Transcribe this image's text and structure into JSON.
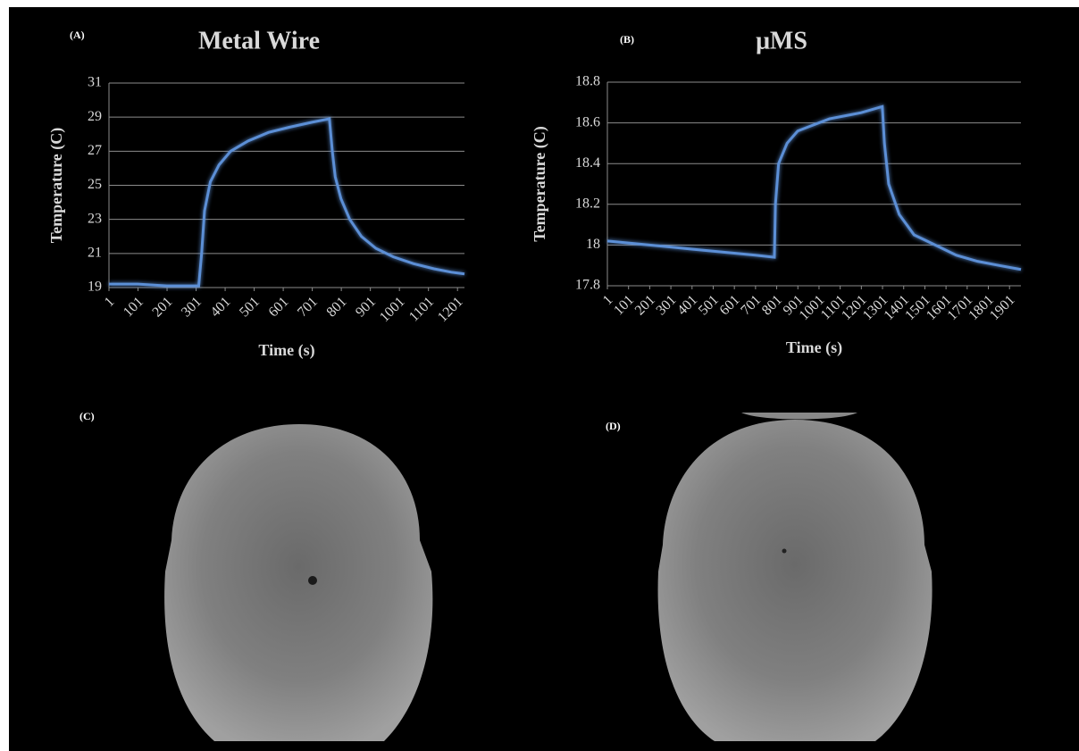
{
  "chart_data": [
    {
      "type": "line",
      "panel_label": "(A)",
      "title": "Metal Wire",
      "x_label": "Time (s)",
      "y_label": "Temperature (C)",
      "x": [
        1,
        100,
        200,
        300,
        310,
        320,
        330,
        350,
        380,
        420,
        480,
        550,
        620,
        700,
        760,
        770,
        780,
        800,
        830,
        870,
        920,
        980,
        1050,
        1120,
        1180,
        1225
      ],
      "series": [
        {
          "color": "#5b8fd6",
          "values": [
            19.2,
            19.2,
            19.1,
            19.1,
            19.1,
            21,
            23.5,
            25.2,
            26.2,
            27,
            27.6,
            28.1,
            28.4,
            28.7,
            28.9,
            27,
            25.5,
            24.2,
            23.0,
            22.0,
            21.3,
            20.8,
            20.4,
            20.1,
            19.9,
            19.8
          ]
        }
      ],
      "xlim": [
        1,
        1225
      ],
      "xticks": [
        1,
        101,
        201,
        301,
        401,
        501,
        601,
        701,
        801,
        901,
        1001,
        1101,
        1201
      ],
      "ylim": [
        19,
        31
      ],
      "yticks": [
        19,
        21,
        23,
        25,
        27,
        29,
        31
      ],
      "grid": true
    },
    {
      "type": "line",
      "panel_label": "(B)",
      "title": "μMS",
      "x_label": "Time (s)",
      "y_label": "Temperature (C)",
      "x": [
        1,
        100,
        200,
        300,
        400,
        500,
        600,
        700,
        790,
        795,
        810,
        850,
        900,
        950,
        1050,
        1150,
        1200,
        1300,
        1310,
        1330,
        1380,
        1450,
        1550,
        1650,
        1750,
        1850,
        1955
      ],
      "series": [
        {
          "color": "#5b8fd6",
          "values": [
            18.02,
            18.01,
            18.0,
            17.99,
            17.98,
            17.97,
            17.96,
            17.95,
            17.94,
            18.2,
            18.4,
            18.5,
            18.56,
            18.58,
            18.62,
            18.64,
            18.65,
            18.68,
            18.5,
            18.3,
            18.15,
            18.05,
            18.0,
            17.95,
            17.92,
            17.9,
            17.88
          ]
        }
      ],
      "xlim": [
        1,
        1955
      ],
      "xticks": [
        1,
        101,
        201,
        301,
        401,
        501,
        601,
        701,
        801,
        901,
        1001,
        1101,
        1201,
        1301,
        1401,
        1501,
        1601,
        1701,
        1801,
        1901
      ],
      "ylim": [
        17.8,
        18.8
      ],
      "yticks": [
        17.8,
        18,
        18.2,
        18.4,
        18.6,
        18.8
      ],
      "grid": true
    }
  ],
  "image_panels": [
    {
      "label": "(C)"
    },
    {
      "label": "(D)"
    }
  ]
}
